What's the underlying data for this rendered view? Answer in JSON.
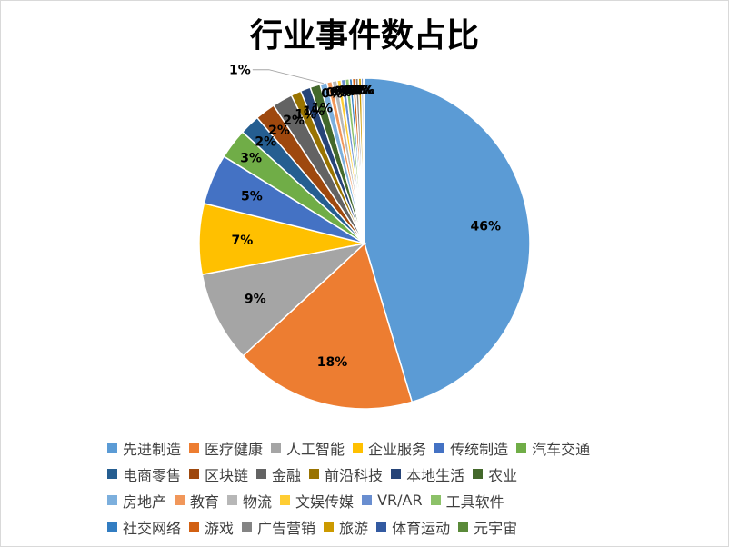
{
  "chart_data": {
    "type": "pie",
    "title": "行业事件数占比",
    "legend_position": "bottom",
    "categories": [
      "先进制造",
      "医疗健康",
      "人工智能",
      "企业服务",
      "传统制造",
      "汽车交通",
      "电商零售",
      "区块链",
      "金融",
      "前沿科技",
      "本地生活",
      "农业",
      "房地产",
      "教育",
      "物流",
      "文娱传媒",
      "VR/AR",
      "工具软件",
      "社交网络",
      "游戏",
      "广告营销",
      "旅游",
      "体育运动",
      "元宇宙"
    ],
    "values": [
      46,
      18,
      9,
      7,
      5,
      3,
      2,
      2,
      2,
      1,
      1,
      1,
      0.7,
      0.5,
      0.5,
      0.4,
      0.4,
      0.4,
      0.3,
      0.3,
      0.3,
      0.3,
      0.2,
      0.1
    ],
    "data_labels": [
      "46%",
      "18%",
      "9%",
      "7%",
      "5%",
      "3%",
      "2%",
      "2%",
      "2%",
      "1%",
      "1%",
      "1%",
      "1%",
      "0%",
      "0%",
      "0%",
      "0%",
      "0%",
      "0%",
      "0%",
      "0%",
      "0%",
      "0%",
      "0%"
    ],
    "colors": [
      "#5B9BD5",
      "#ED7D31",
      "#A5A5A5",
      "#FFC000",
      "#4472C4",
      "#70AD47",
      "#255E91",
      "#9E480E",
      "#636363",
      "#997300",
      "#264478",
      "#43682B",
      "#7CAFDD",
      "#F1975A",
      "#B7B7B7",
      "#FFCD33",
      "#698ED0",
      "#8CC168",
      "#327DC2",
      "#D26012",
      "#848484",
      "#CC9A00",
      "#335AA1",
      "#5A8A39"
    ]
  }
}
